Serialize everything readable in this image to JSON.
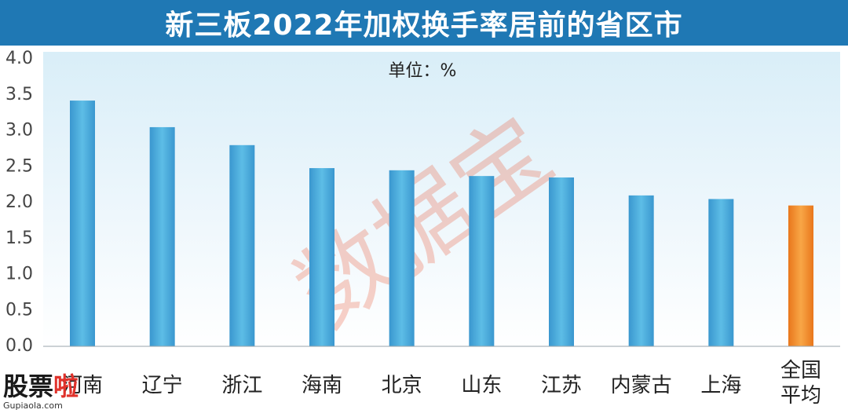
{
  "chart_data": {
    "type": "bar",
    "title": "新三板2022年加权换手率居前的省区市",
    "unit_label": "单位：%",
    "categories": [
      "河南",
      "辽宁",
      "浙江",
      "海南",
      "北京",
      "山东",
      "江苏",
      "内蒙古",
      "上海",
      "全国平均"
    ],
    "values": [
      3.42,
      3.05,
      2.8,
      2.48,
      2.45,
      2.37,
      2.35,
      2.1,
      2.05,
      1.96
    ],
    "ylim": [
      0,
      4.0
    ],
    "yticks": [
      "0.0",
      "0.5",
      "1.0",
      "1.5",
      "2.0",
      "2.5",
      "3.0",
      "3.5",
      "4.0"
    ],
    "colors": {
      "bar": "#4aa9d9",
      "highlight": "#f08c2a"
    },
    "highlight_category": "全国平均",
    "grid": false
  },
  "watermark": "数据宝",
  "logo": {
    "name": "股票啦",
    "url": "Gupiaola.com"
  }
}
